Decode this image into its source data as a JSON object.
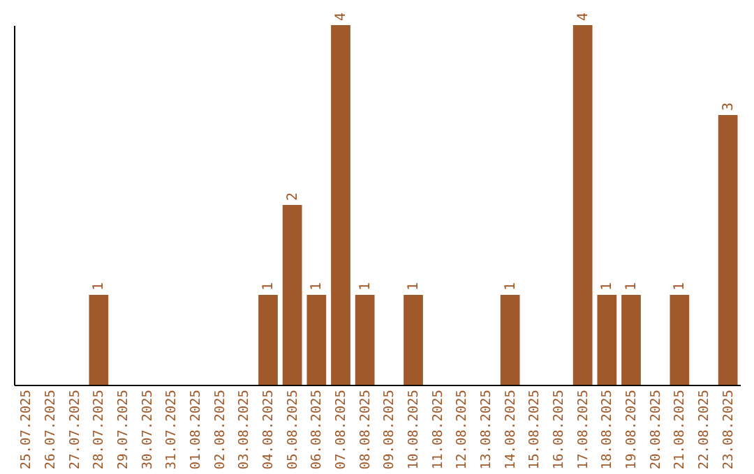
{
  "chart_data": {
    "type": "bar",
    "categories": [
      "25.07.2025",
      "26.07.2025",
      "27.07.2025",
      "28.07.2025",
      "29.07.2025",
      "30.07.2025",
      "31.07.2025",
      "01.08.2025",
      "02.08.2025",
      "03.08.2025",
      "04.08.2025",
      "05.08.2025",
      "06.08.2025",
      "07.08.2025",
      "08.08.2025",
      "09.08.2025",
      "10.08.2025",
      "11.08.2025",
      "12.08.2025",
      "13.08.2025",
      "14.08.2025",
      "15.08.2025",
      "16.08.2025",
      "17.08.2025",
      "18.08.2025",
      "19.08.2025",
      "20.08.2025",
      "21.08.2025",
      "22.08.2025",
      "23.08.2025"
    ],
    "values": [
      0,
      0,
      0,
      1,
      0,
      0,
      0,
      0,
      0,
      0,
      1,
      2,
      1,
      4,
      1,
      0,
      1,
      0,
      0,
      0,
      1,
      0,
      0,
      4,
      1,
      1,
      0,
      1,
      0,
      3
    ],
    "value_labels": [
      null,
      null,
      null,
      "1",
      null,
      null,
      null,
      null,
      null,
      null,
      "1",
      "2",
      "1",
      "4",
      "1",
      null,
      "1",
      null,
      null,
      null,
      "1",
      null,
      null,
      "4",
      "1",
      "1",
      null,
      "1",
      null,
      "3"
    ],
    "color": "#a0592b",
    "grid": false,
    "tick_labels": "x"
  }
}
